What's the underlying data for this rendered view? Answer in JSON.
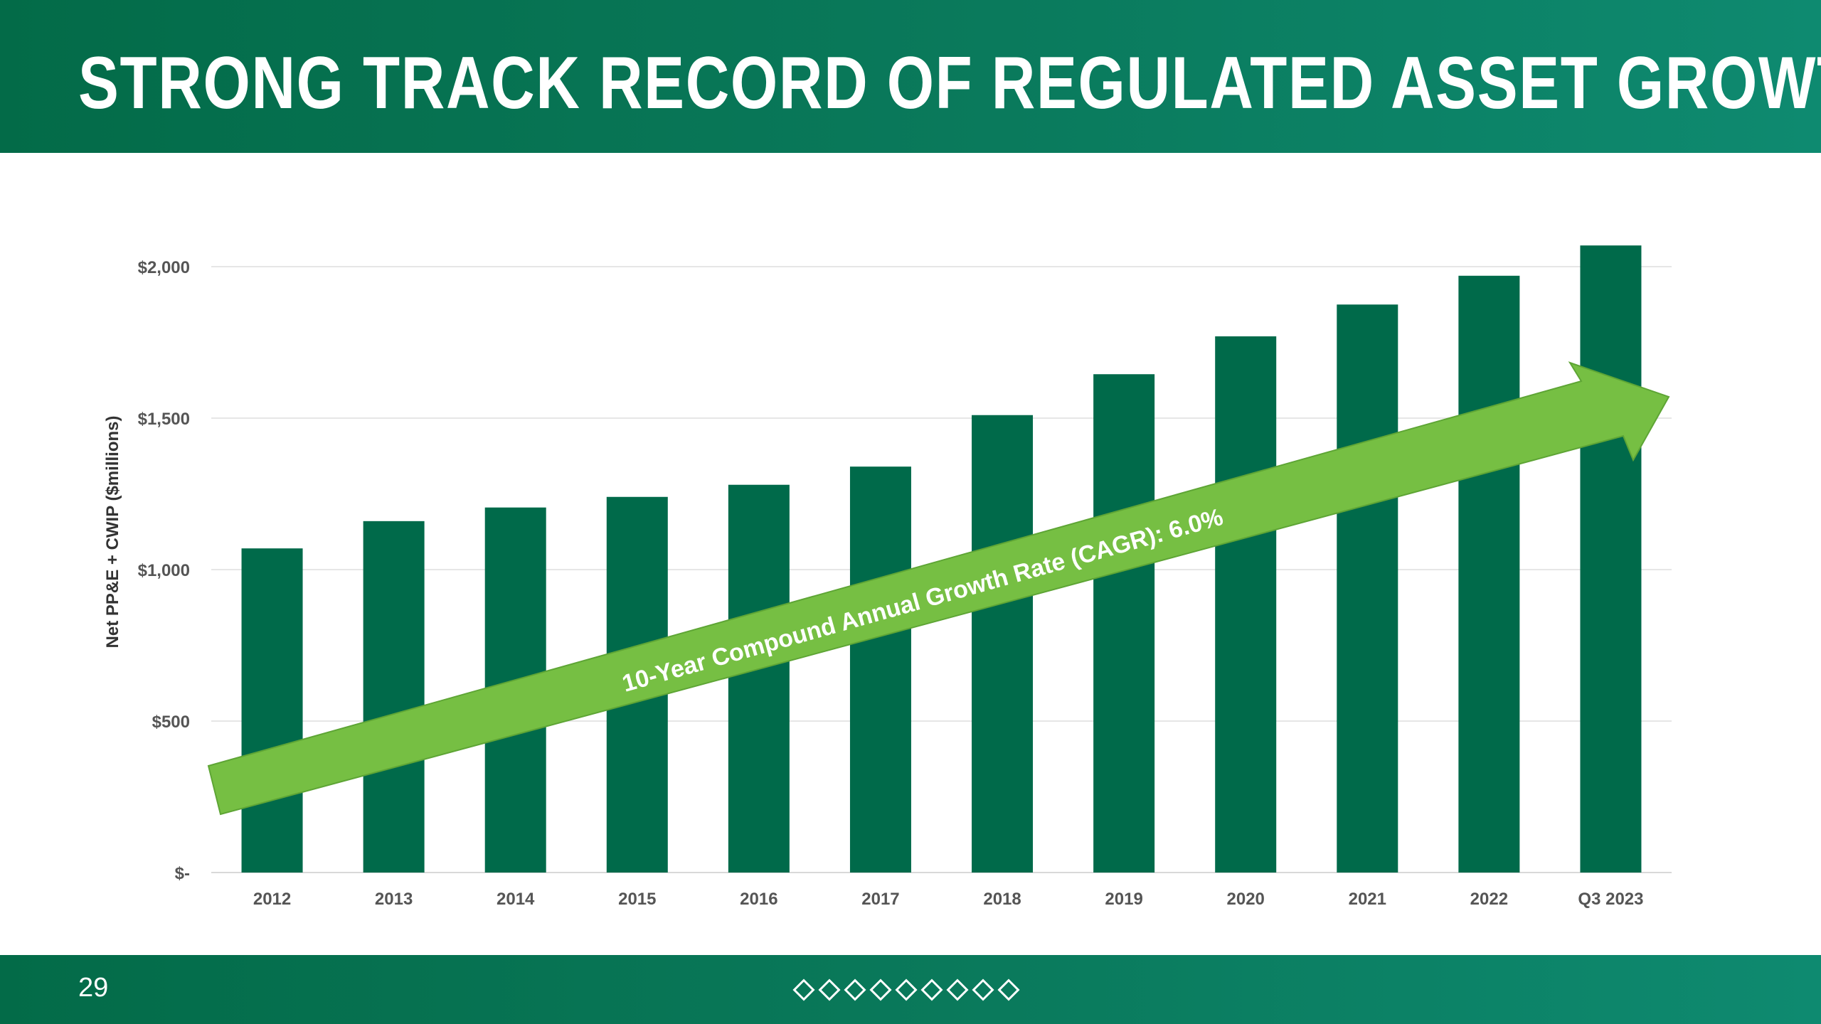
{
  "slide": {
    "title": "STRONG TRACK RECORD OF REGULATED ASSET GROWTH",
    "page_number": "29",
    "footer_diamond_count": 9
  },
  "colors": {
    "header_green": "#036b48",
    "bar_green": "#006a4a",
    "arrow_green": "#76bf43",
    "arrow_border": "#5ea535"
  },
  "chart_data": {
    "type": "bar",
    "title": "",
    "xlabel": "",
    "ylabel": "Net PP&E + CWIP ($millions)",
    "categories": [
      "2012",
      "2013",
      "2014",
      "2015",
      "2016",
      "2017",
      "2018",
      "2019",
      "2020",
      "2021",
      "2022",
      "Q3 2023"
    ],
    "values": [
      1070,
      1160,
      1205,
      1240,
      1280,
      1340,
      1510,
      1645,
      1770,
      1875,
      1970,
      2070
    ],
    "ylim": [
      0,
      2000
    ],
    "yticks": [
      {
        "value": 0,
        "label": "$-"
      },
      {
        "value": 500,
        "label": "$500"
      },
      {
        "value": 1000,
        "label": "$1,000"
      },
      {
        "value": 1500,
        "label": "$1,500"
      },
      {
        "value": 2000,
        "label": "$2,000"
      }
    ],
    "grid": true,
    "annotation": "10-Year Compound Annual Growth Rate (CAGR): 6.0%"
  }
}
